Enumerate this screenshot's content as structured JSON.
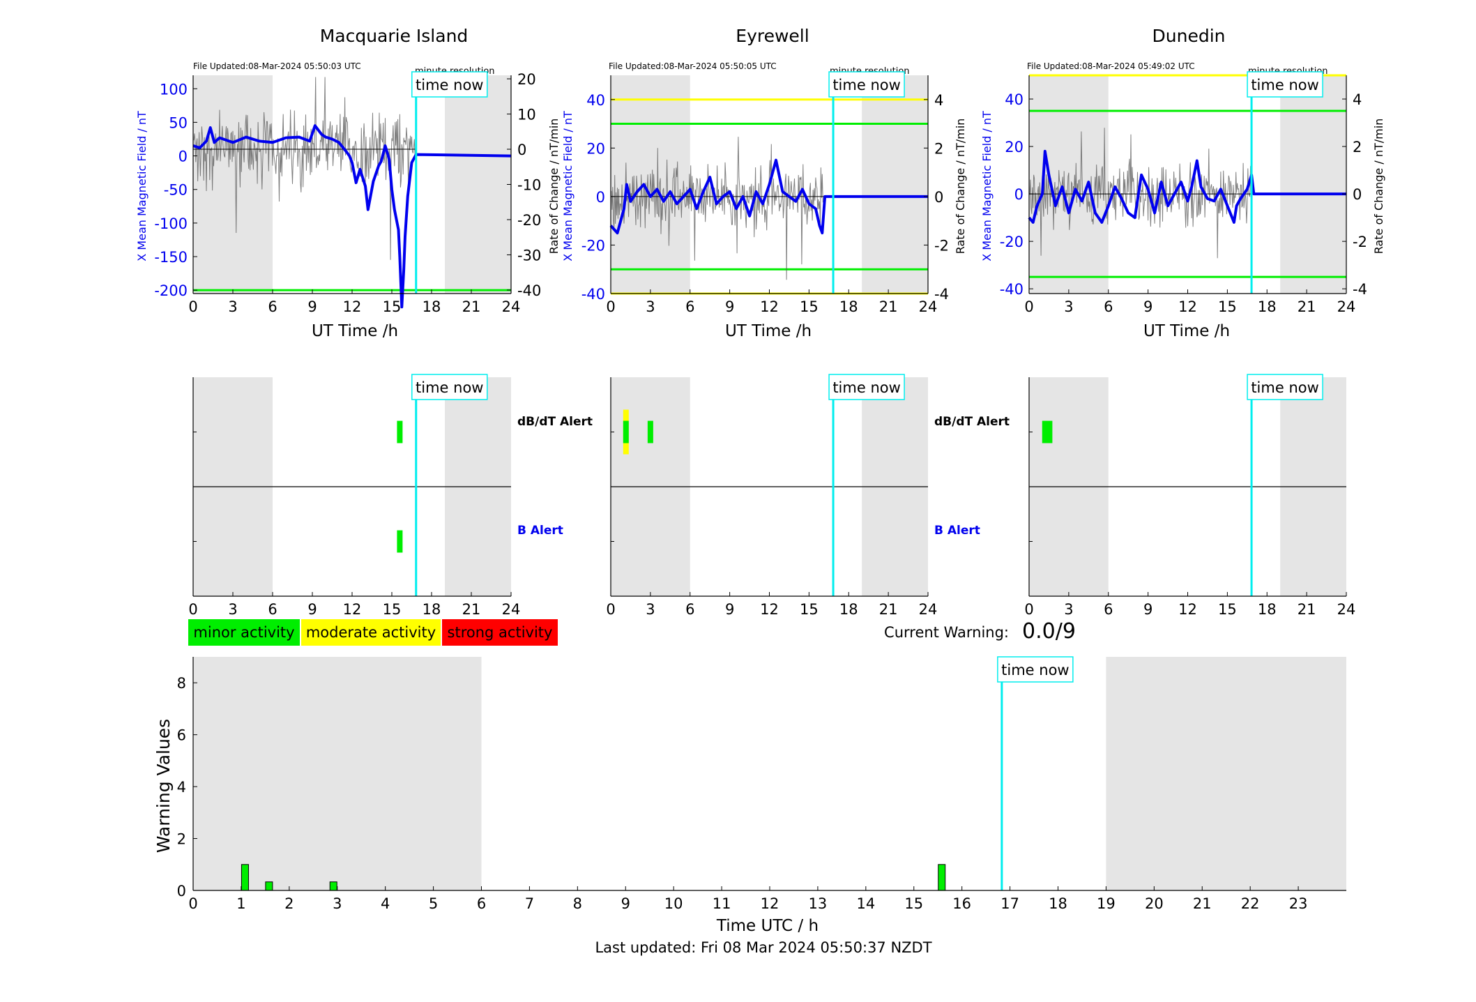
{
  "colors": {
    "blue": "#0000ee",
    "gray_trace": "#555555",
    "green": "#00ee00",
    "yellow": "#ffff00",
    "red": "#ff0000",
    "cyan": "#00eeee",
    "shade": "#e5e5e5"
  },
  "time_now_label": "time now",
  "minute_resolution_label": "minute resolution",
  "stations": [
    {
      "name": "Macquarie Island",
      "file_updated": "File Updated:08-Mar-2024 05:50:03 UTC",
      "show_minute_label": true,
      "ylabel_left": "X Mean Magnetic Field / nT",
      "ylabel_right": "Rate of Change / nT/min",
      "xlabel": "UT Time /h",
      "ylim": [
        -205,
        120
      ],
      "y2lim": [
        -41,
        21
      ],
      "yticks": [
        100,
        50,
        0,
        -50,
        -100,
        -150,
        -200
      ],
      "y2ticks": [
        20,
        10,
        0,
        -10,
        -20,
        -30,
        -40
      ],
      "thresholds": [
        {
          "value": -200,
          "color": "green"
        }
      ],
      "y2_thresholds": [],
      "time_now_h": 16.83,
      "field": [
        [
          0,
          15
        ],
        [
          0.5,
          12
        ],
        [
          1,
          22
        ],
        [
          1.3,
          42
        ],
        [
          1.6,
          20
        ],
        [
          2,
          27
        ],
        [
          3,
          20
        ],
        [
          4,
          28
        ],
        [
          5,
          22
        ],
        [
          6,
          20
        ],
        [
          7,
          27
        ],
        [
          8,
          28
        ],
        [
          8.8,
          22
        ],
        [
          9.2,
          45
        ],
        [
          9.7,
          32
        ],
        [
          10,
          28
        ],
        [
          10.5,
          25
        ],
        [
          11,
          20
        ],
        [
          11.5,
          8
        ],
        [
          11.8,
          0
        ],
        [
          12,
          -10
        ],
        [
          12.3,
          -40
        ],
        [
          12.6,
          -20
        ],
        [
          13,
          -45
        ],
        [
          13.2,
          -80
        ],
        [
          13.6,
          -38
        ],
        [
          14,
          -15
        ],
        [
          14.2,
          -8
        ],
        [
          14.5,
          15
        ],
        [
          14.8,
          -5
        ],
        [
          15,
          -50
        ],
        [
          15.2,
          -80
        ],
        [
          15.5,
          -110
        ],
        [
          15.6,
          -150
        ],
        [
          15.75,
          -225
        ],
        [
          15.9,
          -170
        ],
        [
          16,
          -120
        ],
        [
          16.2,
          -60
        ],
        [
          16.5,
          -10
        ],
        [
          16.83,
          2
        ],
        [
          24,
          0
        ]
      ],
      "rate": [
        [
          0,
          0
        ],
        [
          16.83,
          0
        ],
        [
          24,
          0
        ]
      ],
      "dbdt_alerts": [
        {
          "h": 15.6,
          "level": "minor"
        }
      ],
      "b_alerts": [
        {
          "h": 15.6,
          "level": "minor"
        }
      ]
    },
    {
      "name": "Eyrewell",
      "file_updated": "File Updated:08-Mar-2024 05:50:05 UTC",
      "show_minute_label": true,
      "ylabel_left": "X Mean Magnetic Field / nT",
      "ylabel_right": "Rate of Change / nT/min",
      "xlabel": "UT Time /h",
      "ylim": [
        -40,
        50
      ],
      "y2lim": [
        -4,
        5
      ],
      "yticks": [
        40,
        20,
        0,
        -20,
        -40
      ],
      "y2ticks": [
        4,
        2,
        0,
        -2,
        -4
      ],
      "thresholds": [
        {
          "value": 40,
          "color": "yellow"
        },
        {
          "value": 30,
          "color": "green"
        },
        {
          "value": -30,
          "color": "green"
        },
        {
          "value": -40,
          "color": "yellow"
        }
      ],
      "y2_thresholds": [],
      "time_now_h": 16.83,
      "field": [
        [
          0,
          -12
        ],
        [
          0.5,
          -15
        ],
        [
          1,
          -5
        ],
        [
          1.2,
          5
        ],
        [
          1.5,
          -2
        ],
        [
          2,
          2
        ],
        [
          2.5,
          5
        ],
        [
          3,
          0
        ],
        [
          3.5,
          3
        ],
        [
          4,
          -2
        ],
        [
          4.5,
          2
        ],
        [
          5,
          -3
        ],
        [
          5.5,
          0
        ],
        [
          6,
          3
        ],
        [
          6.5,
          -5
        ],
        [
          7,
          2
        ],
        [
          7.5,
          8
        ],
        [
          8,
          -3
        ],
        [
          8.5,
          0
        ],
        [
          9,
          2
        ],
        [
          9.5,
          -5
        ],
        [
          10,
          0
        ],
        [
          10.5,
          -8
        ],
        [
          11,
          2
        ],
        [
          11.5,
          -3
        ],
        [
          12,
          5
        ],
        [
          12.5,
          15
        ],
        [
          13,
          2
        ],
        [
          13.5,
          0
        ],
        [
          14,
          -2
        ],
        [
          14.5,
          3
        ],
        [
          15,
          -3
        ],
        [
          15.5,
          -5
        ],
        [
          15.8,
          -12
        ],
        [
          16,
          -15
        ],
        [
          16.2,
          0
        ],
        [
          24,
          0
        ]
      ],
      "rate": [
        [
          0,
          0
        ],
        [
          24,
          0
        ]
      ],
      "dbdt_alerts": [
        {
          "h": 1.15,
          "level": "moderate"
        },
        {
          "h": 3.0,
          "level": "minor"
        }
      ],
      "b_alerts": []
    },
    {
      "name": "Dunedin",
      "file_updated": "File Updated:08-Mar-2024 05:49:02 UTC",
      "show_minute_label": true,
      "ylabel_left": "X Mean Magnetic Field / nT",
      "ylabel_right": "Rate of Change / nT/min",
      "xlabel": "UT Time /h",
      "ylim": [
        -42,
        50
      ],
      "y2lim": [
        -4.2,
        5
      ],
      "yticks": [
        40,
        20,
        0,
        -20,
        -40
      ],
      "y2ticks": [
        4,
        2,
        0,
        -2,
        -4
      ],
      "thresholds": [
        {
          "value": 50,
          "color": "yellow"
        },
        {
          "value": 35,
          "color": "green"
        },
        {
          "value": -35,
          "color": "green"
        }
      ],
      "y2_thresholds": [],
      "time_now_h": 16.83,
      "field": [
        [
          0,
          -10
        ],
        [
          0.3,
          -12
        ],
        [
          0.6,
          -5
        ],
        [
          1,
          0
        ],
        [
          1.2,
          18
        ],
        [
          1.5,
          8
        ],
        [
          2,
          -5
        ],
        [
          2.5,
          3
        ],
        [
          3,
          -8
        ],
        [
          3.5,
          2
        ],
        [
          4,
          -3
        ],
        [
          4.5,
          5
        ],
        [
          5,
          -8
        ],
        [
          5.5,
          -12
        ],
        [
          6,
          -5
        ],
        [
          6.5,
          3
        ],
        [
          7,
          -2
        ],
        [
          7.5,
          -8
        ],
        [
          8,
          -10
        ],
        [
          8.5,
          8
        ],
        [
          9,
          2
        ],
        [
          9.5,
          -8
        ],
        [
          10,
          5
        ],
        [
          10.5,
          -5
        ],
        [
          11,
          0
        ],
        [
          11.5,
          5
        ],
        [
          12,
          -3
        ],
        [
          12.3,
          3
        ],
        [
          12.7,
          14
        ],
        [
          13,
          3
        ],
        [
          13.5,
          -2
        ],
        [
          14,
          -3
        ],
        [
          14.5,
          2
        ],
        [
          15,
          -5
        ],
        [
          15.5,
          -12
        ],
        [
          15.7,
          -5
        ],
        [
          16,
          -2
        ],
        [
          16.5,
          2
        ],
        [
          16.83,
          8
        ],
        [
          17,
          0
        ],
        [
          24,
          0
        ]
      ],
      "rate": [
        [
          0,
          0
        ],
        [
          24,
          0
        ]
      ],
      "dbdt_alerts": [
        {
          "h": 1.2,
          "level": "minor"
        },
        {
          "h": 1.55,
          "level": "minor"
        }
      ],
      "b_alerts": []
    }
  ],
  "alert_labels": {
    "dbdt": "dB/dT Alert",
    "b": "B Alert"
  },
  "alert_xticks": [
    0,
    3,
    6,
    9,
    12,
    15,
    18,
    21,
    24
  ],
  "legend": [
    {
      "label": "minor activity",
      "color": "green"
    },
    {
      "label": "moderate activity",
      "color": "yellow"
    },
    {
      "label": "strong activity",
      "color": "red"
    }
  ],
  "current_warning": {
    "label": "Current Warning:",
    "value": "0.0/9"
  },
  "chart_data": {
    "type": "bar",
    "ylabel": "Warning Values",
    "xlabel": "Time UTC / h",
    "xlim": [
      0,
      24
    ],
    "ylim": [
      0,
      9
    ],
    "yticks": [
      0,
      2,
      4,
      6,
      8
    ],
    "xticks": [
      0,
      1,
      2,
      3,
      4,
      5,
      6,
      7,
      8,
      9,
      10,
      11,
      12,
      13,
      14,
      15,
      16,
      17,
      18,
      19,
      20,
      21,
      22,
      23
    ],
    "x": [
      1.08,
      1.58,
      2.92,
      15.58
    ],
    "values": [
      1.0,
      0.33,
      0.33,
      1.0
    ],
    "time_now_h": 16.83,
    "night_shade": [
      [
        0,
        6
      ],
      [
        19,
        24
      ]
    ]
  },
  "footer": "Last updated: Fri 08 Mar 2024 05:50:37 NZDT"
}
